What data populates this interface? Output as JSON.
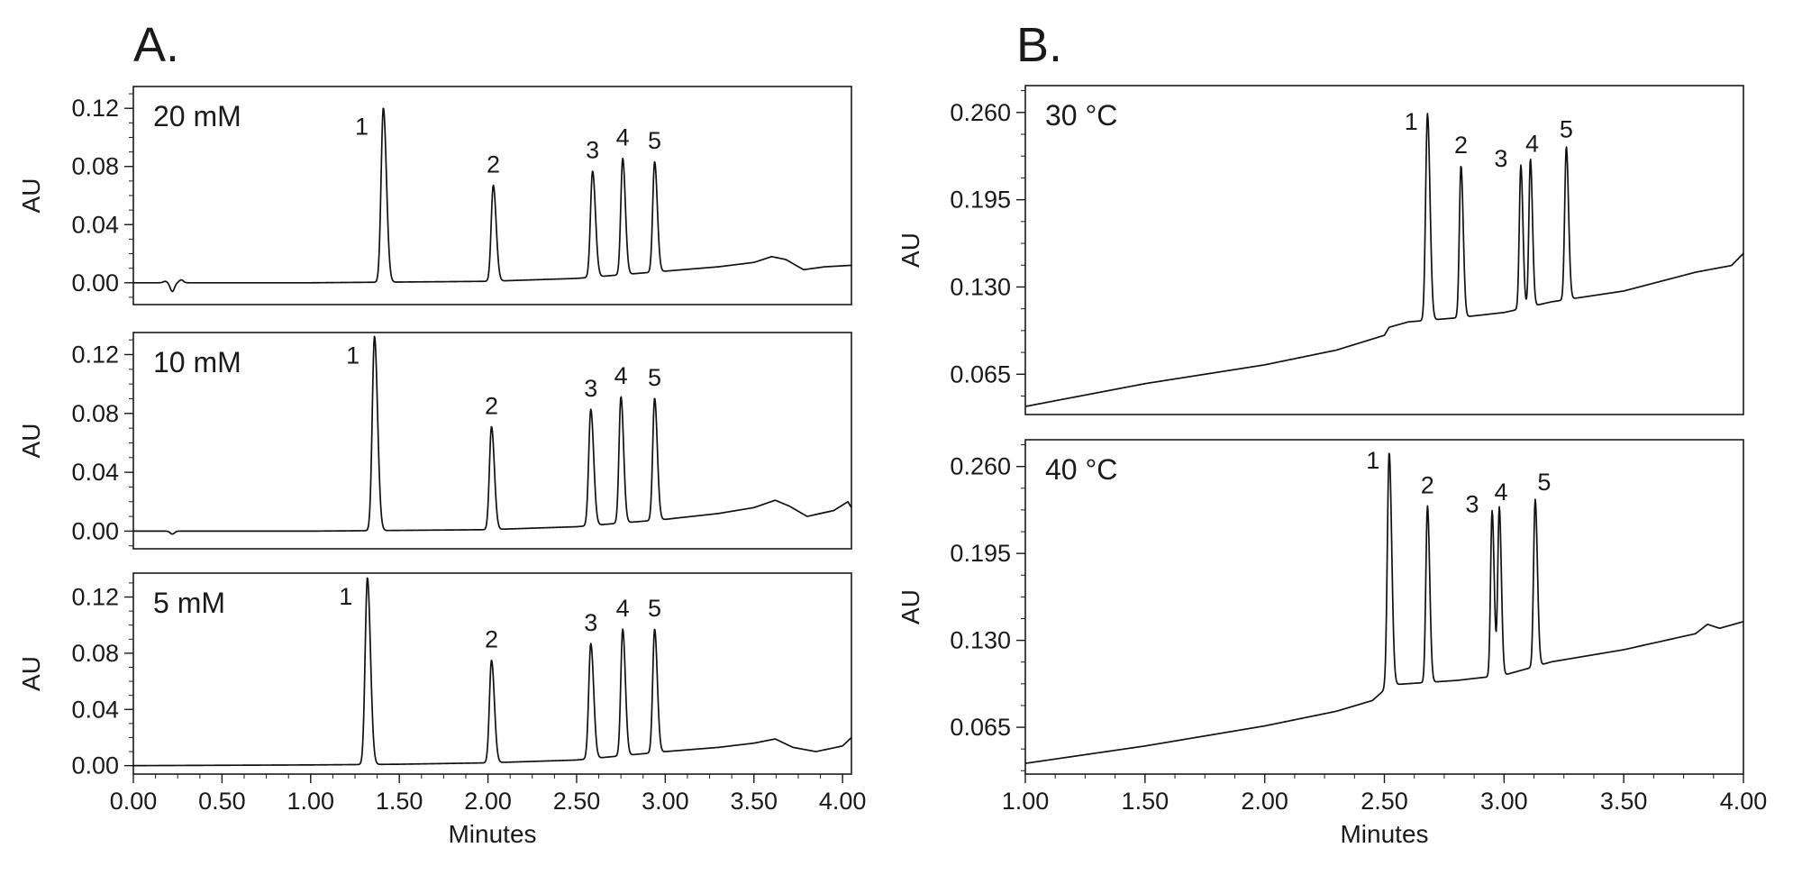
{
  "figure": {
    "panel_a_label": "A.",
    "panel_b_label": "B."
  },
  "chart_data": [
    {
      "type": "line",
      "panel": "A.",
      "condition_label": "20 mM",
      "ylabel": "AU",
      "xlabel": "",
      "xlim": [
        0.0,
        4.05
      ],
      "ylim": [
        -0.015,
        0.135
      ],
      "y_ticks": [
        0.0,
        0.04,
        0.08,
        0.12
      ],
      "y_tick_labels": [
        "0.00",
        "0.04",
        "0.08",
        "0.12"
      ],
      "x_ticks": [],
      "x_tick_labels": [],
      "baseline": [
        [
          0.0,
          0.0
        ],
        [
          1.0,
          0.0
        ],
        [
          1.5,
          0.0005
        ],
        [
          2.0,
          0.001
        ],
        [
          2.5,
          0.003
        ],
        [
          3.0,
          0.008
        ],
        [
          3.3,
          0.011
        ],
        [
          3.5,
          0.014
        ],
        [
          3.6,
          0.018
        ],
        [
          3.68,
          0.016
        ],
        [
          3.78,
          0.009
        ],
        [
          3.9,
          0.011
        ],
        [
          4.05,
          0.012
        ]
      ],
      "disturbances": [
        [
          0.18,
          0.001
        ],
        [
          0.22,
          -0.006
        ],
        [
          0.27,
          0.002
        ]
      ],
      "peaks": [
        {
          "label": "1",
          "rt": 1.41,
          "height": 0.12,
          "width": 0.028
        },
        {
          "label": "2",
          "rt": 2.03,
          "height": 0.066,
          "width": 0.026
        },
        {
          "label": "3",
          "rt": 2.59,
          "height": 0.073,
          "width": 0.026
        },
        {
          "label": "4",
          "rt": 2.76,
          "height": 0.08,
          "width": 0.024
        },
        {
          "label": "5",
          "rt": 2.94,
          "height": 0.076,
          "width": 0.024
        }
      ]
    },
    {
      "type": "line",
      "panel": "A.",
      "condition_label": "10 mM",
      "ylabel": "AU",
      "xlabel": "",
      "xlim": [
        0.0,
        4.05
      ],
      "ylim": [
        -0.012,
        0.135
      ],
      "y_ticks": [
        0.0,
        0.04,
        0.08,
        0.12
      ],
      "y_tick_labels": [
        "0.00",
        "0.04",
        "0.08",
        "0.12"
      ],
      "x_ticks": [],
      "x_tick_labels": [],
      "baseline": [
        [
          0.0,
          0.0
        ],
        [
          1.0,
          0.0
        ],
        [
          1.5,
          0.0005
        ],
        [
          2.0,
          0.001
        ],
        [
          2.5,
          0.003
        ],
        [
          3.0,
          0.008
        ],
        [
          3.3,
          0.012
        ],
        [
          3.5,
          0.016
        ],
        [
          3.62,
          0.021
        ],
        [
          3.7,
          0.017
        ],
        [
          3.8,
          0.01
        ],
        [
          3.95,
          0.014
        ],
        [
          4.03,
          0.02
        ],
        [
          4.05,
          0.016
        ]
      ],
      "disturbances": [
        [
          0.22,
          -0.002
        ]
      ],
      "peaks": [
        {
          "label": "1",
          "rt": 1.36,
          "height": 0.132,
          "width": 0.028
        },
        {
          "label": "2",
          "rt": 2.02,
          "height": 0.07,
          "width": 0.026
        },
        {
          "label": "3",
          "rt": 2.58,
          "height": 0.079,
          "width": 0.026
        },
        {
          "label": "4",
          "rt": 2.75,
          "height": 0.086,
          "width": 0.024
        },
        {
          "label": "5",
          "rt": 2.94,
          "height": 0.083,
          "width": 0.024
        }
      ]
    },
    {
      "type": "line",
      "panel": "A.",
      "condition_label": "5 mM",
      "ylabel": "AU",
      "xlabel": "Minutes",
      "xlim": [
        0.0,
        4.05
      ],
      "ylim": [
        -0.006,
        0.137
      ],
      "y_ticks": [
        0.0,
        0.04,
        0.08,
        0.12
      ],
      "y_tick_labels": [
        "0.00",
        "0.04",
        "0.08",
        "0.12"
      ],
      "x_ticks": [
        0.0,
        0.5,
        1.0,
        1.5,
        2.0,
        2.5,
        3.0,
        3.5,
        4.0
      ],
      "x_tick_labels": [
        "0.00",
        "0.50",
        "1.00",
        "1.50",
        "2.00",
        "2.50",
        "3.00",
        "3.50",
        "4.00"
      ],
      "baseline": [
        [
          0.0,
          0.0
        ],
        [
          1.0,
          0.0005
        ],
        [
          1.5,
          0.001
        ],
        [
          2.0,
          0.002
        ],
        [
          2.5,
          0.004
        ],
        [
          3.0,
          0.01
        ],
        [
          3.3,
          0.013
        ],
        [
          3.5,
          0.016
        ],
        [
          3.62,
          0.019
        ],
        [
          3.72,
          0.013
        ],
        [
          3.85,
          0.01
        ],
        [
          4.0,
          0.014
        ],
        [
          4.05,
          0.02
        ]
      ],
      "disturbances": [],
      "peaks": [
        {
          "label": "1",
          "rt": 1.32,
          "height": 0.133,
          "width": 0.028
        },
        {
          "label": "2",
          "rt": 2.02,
          "height": 0.073,
          "width": 0.026
        },
        {
          "label": "3",
          "rt": 2.58,
          "height": 0.082,
          "width": 0.026
        },
        {
          "label": "4",
          "rt": 2.76,
          "height": 0.09,
          "width": 0.024
        },
        {
          "label": "5",
          "rt": 2.94,
          "height": 0.088,
          "width": 0.024
        }
      ]
    },
    {
      "type": "line",
      "panel": "B.",
      "condition_label": "30 °C",
      "ylabel": "AU",
      "xlabel": "",
      "xlim": [
        1.0,
        4.0
      ],
      "ylim": [
        0.035,
        0.28
      ],
      "y_ticks": [
        0.065,
        0.13,
        0.195,
        0.26
      ],
      "y_tick_labels": [
        "0.065",
        "0.130",
        "0.195",
        "0.260"
      ],
      "x_ticks": [],
      "x_tick_labels": [],
      "baseline": [
        [
          1.0,
          0.041
        ],
        [
          1.5,
          0.058
        ],
        [
          2.0,
          0.072
        ],
        [
          2.3,
          0.083
        ],
        [
          2.5,
          0.094
        ],
        [
          2.52,
          0.1
        ],
        [
          2.6,
          0.104
        ],
        [
          2.8,
          0.107
        ],
        [
          3.0,
          0.111
        ],
        [
          3.2,
          0.119
        ],
        [
          3.5,
          0.127
        ],
        [
          3.8,
          0.141
        ],
        [
          3.95,
          0.146
        ],
        [
          4.0,
          0.155
        ]
      ],
      "disturbances": [],
      "peaks": [
        {
          "label": "1",
          "rt": 2.68,
          "height": 0.154,
          "width": 0.017
        },
        {
          "label": "2",
          "rt": 2.82,
          "height": 0.113,
          "width": 0.015
        },
        {
          "label": "3",
          "rt": 3.07,
          "height": 0.107,
          "width": 0.014
        },
        {
          "label": "4",
          "rt": 3.11,
          "height": 0.11,
          "width": 0.014
        },
        {
          "label": "5",
          "rt": 3.26,
          "height": 0.114,
          "width": 0.015
        }
      ]
    },
    {
      "type": "line",
      "panel": "B.",
      "condition_label": "40 °C",
      "ylabel": "AU",
      "xlabel": "Minutes",
      "xlim": [
        1.0,
        4.0
      ],
      "ylim": [
        0.03,
        0.28
      ],
      "y_ticks": [
        0.065,
        0.13,
        0.195,
        0.26
      ],
      "y_tick_labels": [
        "0.065",
        "0.130",
        "0.195",
        "0.260"
      ],
      "x_ticks": [
        1.0,
        1.5,
        2.0,
        2.5,
        3.0,
        3.5,
        4.0
      ],
      "x_tick_labels": [
        "1.00",
        "1.50",
        "2.00",
        "2.50",
        "3.00",
        "3.50",
        "4.00"
      ],
      "baseline": [
        [
          1.0,
          0.038
        ],
        [
          1.5,
          0.051
        ],
        [
          2.0,
          0.066
        ],
        [
          2.3,
          0.077
        ],
        [
          2.45,
          0.085
        ],
        [
          2.5,
          0.093
        ],
        [
          2.55,
          0.097
        ],
        [
          2.8,
          0.1
        ],
        [
          3.0,
          0.104
        ],
        [
          3.2,
          0.114
        ],
        [
          3.5,
          0.123
        ],
        [
          3.8,
          0.135
        ],
        [
          3.85,
          0.142
        ],
        [
          3.9,
          0.139
        ],
        [
          4.0,
          0.144
        ]
      ],
      "disturbances": [],
      "peaks": [
        {
          "label": "1",
          "rt": 2.52,
          "height": 0.176,
          "width": 0.017
        },
        {
          "label": "2",
          "rt": 2.68,
          "height": 0.132,
          "width": 0.015
        },
        {
          "label": "3",
          "rt": 2.95,
          "height": 0.124,
          "width": 0.014
        },
        {
          "label": "4",
          "rt": 2.98,
          "height": 0.126,
          "width": 0.014
        },
        {
          "label": "5",
          "rt": 3.13,
          "height": 0.125,
          "width": 0.015
        }
      ]
    }
  ]
}
